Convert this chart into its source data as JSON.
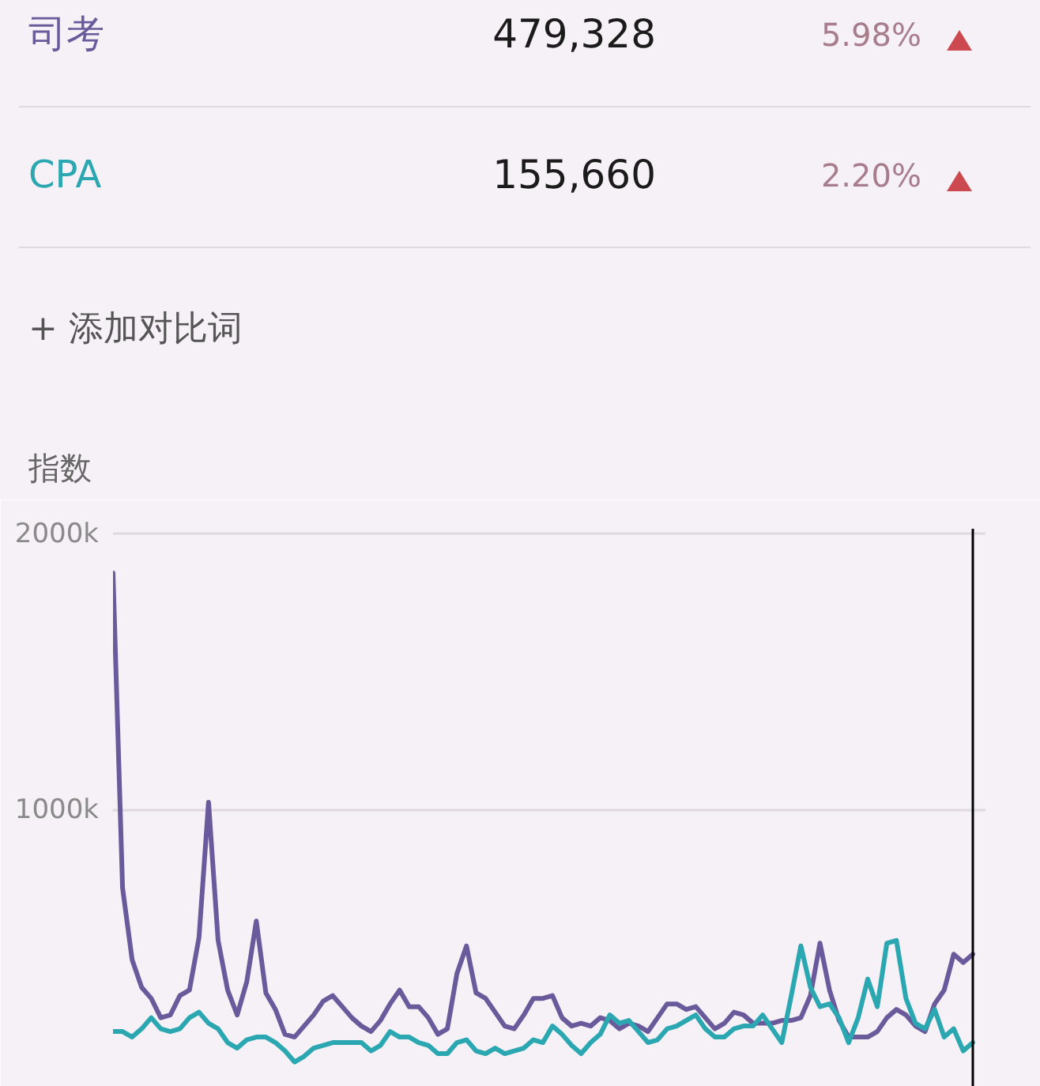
{
  "chart_data": {
    "type": "line",
    "ylabel": "指数",
    "categories": [
      null,
      null,
      null,
      null,
      null,
      null,
      null,
      null,
      null,
      null,
      null,
      null,
      null,
      null,
      null,
      null,
      null,
      null,
      null,
      null,
      null,
      null,
      null,
      null,
      null,
      null,
      null,
      null,
      null,
      null,
      null,
      null,
      null,
      null,
      null,
      null,
      null,
      null,
      null,
      null,
      null,
      null,
      null,
      null,
      null,
      null,
      null,
      null,
      null,
      null,
      null,
      null,
      null,
      null,
      null,
      null,
      null,
      null,
      null,
      null,
      null,
      null,
      null,
      null,
      null,
      null,
      null,
      null,
      null,
      null,
      null,
      null,
      null,
      null,
      null,
      null,
      null,
      null,
      null,
      null,
      null,
      null,
      null,
      null,
      null,
      null,
      null,
      null,
      null,
      null,
      null
    ],
    "series": [
      {
        "name": "司考",
        "color": "#6a5a9c",
        "values": [
          1860000,
          720000,
          460000,
          360000,
          320000,
          250000,
          260000,
          330000,
          350000,
          540000,
          1030000,
          530000,
          350000,
          260000,
          380000,
          600000,
          340000,
          280000,
          190000,
          180000,
          220000,
          260000,
          310000,
          330000,
          290000,
          250000,
          220000,
          200000,
          240000,
          300000,
          350000,
          290000,
          290000,
          250000,
          190000,
          210000,
          410000,
          510000,
          340000,
          320000,
          270000,
          220000,
          210000,
          260000,
          320000,
          320000,
          330000,
          250000,
          220000,
          230000,
          220000,
          250000,
          240000,
          210000,
          230000,
          220000,
          200000,
          250000,
          300000,
          300000,
          280000,
          290000,
          250000,
          210000,
          230000,
          270000,
          260000,
          230000,
          230000,
          230000,
          240000,
          240000,
          250000,
          330000,
          520000,
          350000,
          240000,
          180000,
          180000,
          180000,
          200000,
          250000,
          280000,
          260000,
          220000,
          200000,
          300000,
          350000,
          480000,
          450000,
          480000
        ]
      },
      {
        "name": "CPA",
        "color": "#2aa7b0",
        "values": [
          200000,
          200000,
          180000,
          210000,
          250000,
          210000,
          200000,
          210000,
          250000,
          270000,
          230000,
          210000,
          160000,
          140000,
          170000,
          180000,
          180000,
          160000,
          130000,
          90000,
          110000,
          140000,
          150000,
          160000,
          160000,
          160000,
          160000,
          130000,
          150000,
          200000,
          180000,
          180000,
          160000,
          150000,
          120000,
          120000,
          160000,
          170000,
          130000,
          120000,
          140000,
          120000,
          130000,
          140000,
          170000,
          160000,
          220000,
          190000,
          150000,
          120000,
          160000,
          190000,
          260000,
          230000,
          240000,
          200000,
          160000,
          170000,
          210000,
          220000,
          240000,
          260000,
          210000,
          180000,
          180000,
          210000,
          220000,
          220000,
          260000,
          210000,
          160000,
          330000,
          510000,
          360000,
          290000,
          300000,
          250000,
          160000,
          250000,
          390000,
          290000,
          520000,
          530000,
          320000,
          230000,
          210000,
          280000,
          180000,
          210000,
          130000,
          160000
        ]
      }
    ],
    "ylim": [
      0,
      2020000
    ],
    "yticks": [
      {
        "value": 1000000,
        "label": "1000k"
      },
      {
        "value": 2000000,
        "label": "2000k"
      }
    ],
    "grid": "y",
    "legend": "top",
    "tick_labels": "y",
    "annotations": [
      "479,328",
      "5.98%",
      "155,660",
      "2.20%",
      "+ 添加对比词"
    ]
  }
}
